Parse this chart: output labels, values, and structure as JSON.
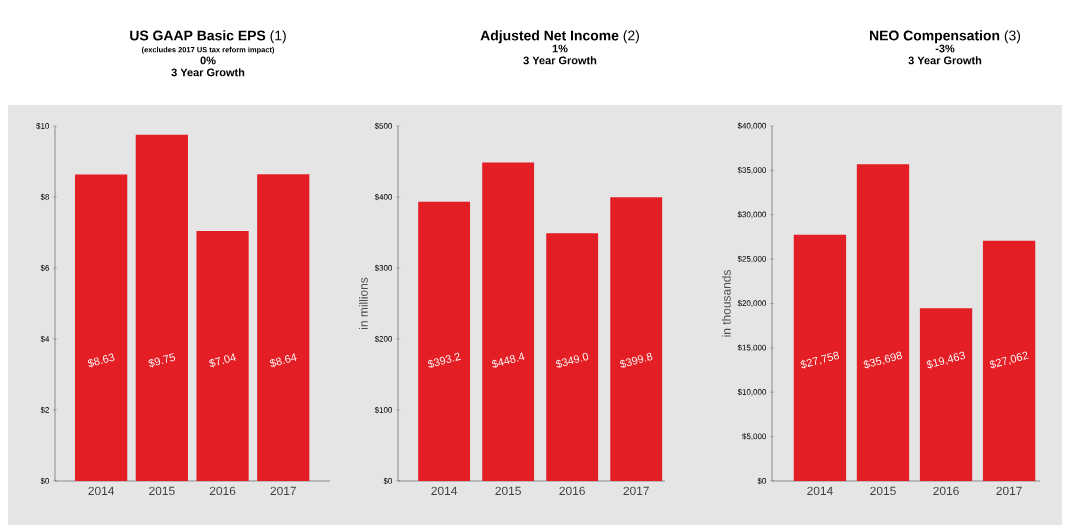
{
  "chart_data": [
    {
      "type": "bar",
      "title": "**US GAAP Basic EPS** (1)",
      "subtitle": "(excludes 2017 US tax reform impact)",
      "annotations": [
        "0%",
        "3 Year Growth"
      ],
      "categories": [
        "2014",
        "2015",
        "2016",
        "2017"
      ],
      "values": [
        8.63,
        9.75,
        7.04,
        8.64
      ],
      "value_labels": [
        "$8.63",
        "$9.75",
        "$7.04",
        "$8.64"
      ],
      "color": "#e31e24",
      "ylim": [
        0,
        10
      ],
      "yticks": [
        {
          "value": 0,
          "label": "$0"
        },
        {
          "value": 2,
          "label": "$2"
        },
        {
          "value": 4,
          "label": "$4"
        },
        {
          "value": 6,
          "label": "$6"
        },
        {
          "value": 8,
          "label": "$8"
        },
        {
          "value": 10,
          "label": "$10"
        }
      ]
    },
    {
      "type": "bar",
      "title": "**Adjusted Net Income** (2)",
      "annotations": [
        "1%",
        "3 Year Growth"
      ],
      "ylabel": "in millions",
      "categories": [
        "2014",
        "2015",
        "2016",
        "2017"
      ],
      "values": [
        393.2,
        448.4,
        349.0,
        399.8
      ],
      "value_labels": [
        "$393.2",
        "$448.4",
        "$349.0",
        "$399.8"
      ],
      "color": "#e31e24",
      "ylim": [
        0,
        500
      ],
      "yticks": [
        {
          "value": 0,
          "label": "$0"
        },
        {
          "value": 100,
          "label": "$100"
        },
        {
          "value": 200,
          "label": "$200"
        },
        {
          "value": 300,
          "label": "$300"
        },
        {
          "value": 400,
          "label": "$400"
        },
        {
          "value": 500,
          "label": "$500"
        }
      ]
    },
    {
      "type": "bar",
      "title": "**NEO Compensation** (3)",
      "annotations": [
        "-3%",
        "3 Year Growth"
      ],
      "ylabel": "in thousands",
      "categories": [
        "2014",
        "2015",
        "2016",
        "2017"
      ],
      "values": [
        27758,
        35698,
        19463,
        27062
      ],
      "value_labels": [
        "$27,758",
        "$35,698",
        "$19,463",
        "$27,062"
      ],
      "color": "#e31e24",
      "ylim": [
        0,
        40000
      ],
      "yticks": [
        {
          "value": 0,
          "label": "$0"
        },
        {
          "value": 5000,
          "label": "$5,000"
        },
        {
          "value": 10000,
          "label": "$10,000"
        },
        {
          "value": 15000,
          "label": "$15,000"
        },
        {
          "value": 20000,
          "label": "$20,000"
        },
        {
          "value": 25000,
          "label": "$25,000"
        },
        {
          "value": 30000,
          "label": "$30,000"
        },
        {
          "value": 35000,
          "label": "$35,000"
        },
        {
          "value": 40000,
          "label": "$40,000"
        }
      ]
    }
  ]
}
